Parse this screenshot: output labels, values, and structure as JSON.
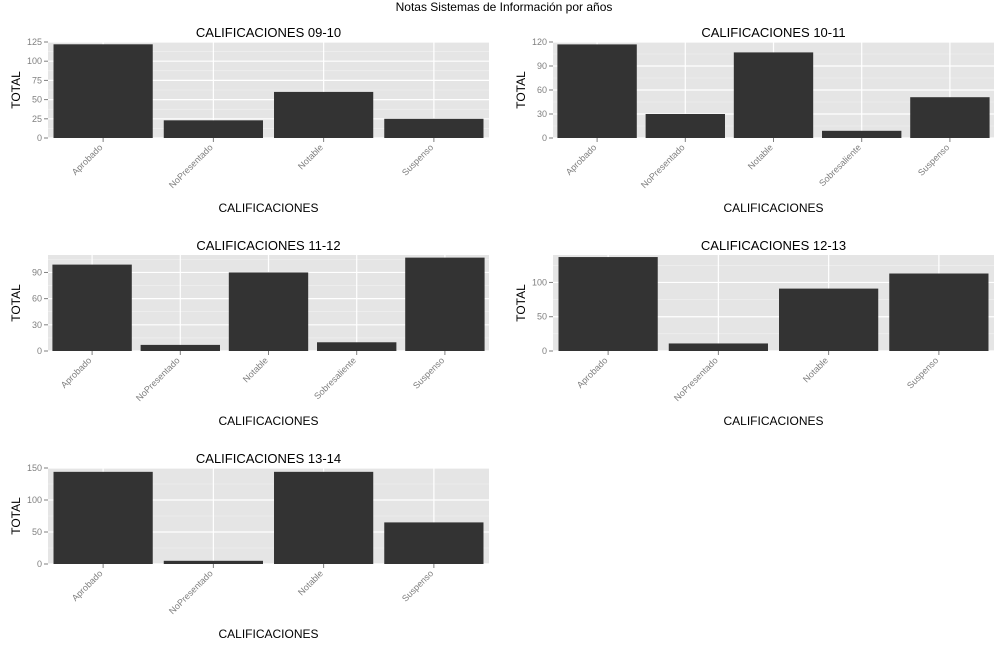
{
  "title": "Notas Sistemas de Información por años",
  "chart_data": [
    {
      "type": "bar",
      "title": "CALIFICACIONES 09-10",
      "xlabel": "CALIFICACIONES",
      "ylabel": "TOTAL",
      "categories": [
        "Aprobado",
        "NoPresentado",
        "Notable",
        "Suspenso"
      ],
      "values": [
        122,
        23,
        60,
        25
      ],
      "ylim": [
        0,
        125
      ],
      "yticks": [
        0,
        25,
        50,
        75,
        100,
        125
      ],
      "grid": true,
      "bar_color": "#333333",
      "panel_background": "#e5e5e5"
    },
    {
      "type": "bar",
      "title": "CALIFICACIONES 10-11",
      "xlabel": "CALIFICACIONES",
      "ylabel": "TOTAL",
      "categories": [
        "Aprobado",
        "NoPresentado",
        "Notable",
        "Sobresaliente",
        "Suspenso"
      ],
      "values": [
        117,
        30,
        107,
        9,
        51
      ],
      "ylim": [
        0,
        120
      ],
      "yticks": [
        0,
        30,
        60,
        90,
        120
      ],
      "grid": true,
      "bar_color": "#333333",
      "panel_background": "#e5e5e5"
    },
    {
      "type": "bar",
      "title": "CALIFICACIONES 11-12",
      "xlabel": "CALIFICACIONES",
      "ylabel": "TOTAL",
      "categories": [
        "Aprobado",
        "NoPresentado",
        "Notable",
        "Sobresaliente",
        "Suspenso"
      ],
      "values": [
        99,
        7,
        90,
        10,
        107
      ],
      "ylim": [
        0,
        110
      ],
      "yticks": [
        0,
        30,
        60,
        90
      ],
      "grid": true,
      "bar_color": "#333333",
      "panel_background": "#e5e5e5"
    },
    {
      "type": "bar",
      "title": "CALIFICACIONES 12-13",
      "xlabel": "CALIFICACIONES",
      "ylabel": "TOTAL",
      "categories": [
        "Aprobado",
        "NoPresentado",
        "Notable",
        "Suspenso"
      ],
      "values": [
        137,
        11,
        91,
        113
      ],
      "ylim": [
        0,
        140
      ],
      "yticks": [
        0,
        50,
        100
      ],
      "grid": true,
      "bar_color": "#333333",
      "panel_background": "#e5e5e5"
    },
    {
      "type": "bar",
      "title": "CALIFICACIONES 13-14",
      "xlabel": "CALIFICACIONES",
      "ylabel": "TOTAL",
      "categories": [
        "Aprobado",
        "NoPresentado",
        "Notable",
        "Suspenso"
      ],
      "values": [
        144,
        5,
        144,
        65
      ],
      "ylim": [
        0,
        150
      ],
      "yticks": [
        0,
        50,
        100,
        150
      ],
      "grid": true,
      "bar_color": "#333333",
      "panel_background": "#e5e5e5"
    }
  ]
}
